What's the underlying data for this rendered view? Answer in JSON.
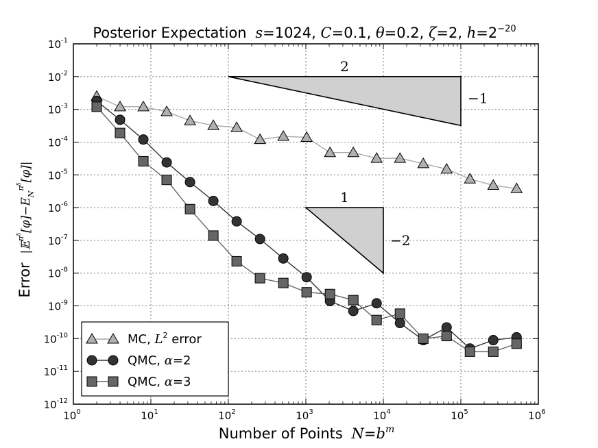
{
  "chart_data": {
    "type": "line",
    "title": "Posterior Expectation s=1024, C=0.1, θ=0.2, ζ=2, h=2^−20",
    "title_parts": {
      "prefix": "Posterior Expectation",
      "s_label": "s",
      "s_value": "1024",
      "C_label": "C",
      "C_value": "0.1",
      "theta_label": "θ",
      "theta_value": "0.2",
      "zeta_label": "ζ",
      "zeta_value": "2",
      "h_label": "h",
      "h_base": "2",
      "h_exp": "−20"
    },
    "xlabel": "Number of Points N=b^m",
    "xlabel_parts": {
      "text": "Number of Points",
      "N": "N",
      "b": "b",
      "m": "m"
    },
    "ylabel": "Error |E^{π^δ}[φ] − E_N^{π^δ}[φ]|",
    "ylabel_parts": {
      "text": "Error"
    },
    "x_scale": "log",
    "y_scale": "log",
    "xlim": [
      1,
      1000000
    ],
    "ylim": [
      1e-12,
      0.1
    ],
    "grid": true,
    "legend_position": "lower-left",
    "x_ticks": [
      {
        "base": "10",
        "exp": "0",
        "value": 1
      },
      {
        "base": "10",
        "exp": "1",
        "value": 10
      },
      {
        "base": "10",
        "exp": "2",
        "value": 100
      },
      {
        "base": "10",
        "exp": "3",
        "value": 1000
      },
      {
        "base": "10",
        "exp": "4",
        "value": 10000
      },
      {
        "base": "10",
        "exp": "5",
        "value": 100000
      },
      {
        "base": "10",
        "exp": "6",
        "value": 1000000
      }
    ],
    "y_ticks": [
      {
        "base": "10",
        "exp": "-12",
        "value": 1e-12
      },
      {
        "base": "10",
        "exp": "-11",
        "value": 1e-11
      },
      {
        "base": "10",
        "exp": "-10",
        "value": 1e-10
      },
      {
        "base": "10",
        "exp": "-9",
        "value": 1e-09
      },
      {
        "base": "10",
        "exp": "-8",
        "value": 1e-08
      },
      {
        "base": "10",
        "exp": "-7",
        "value": 1e-07
      },
      {
        "base": "10",
        "exp": "-6",
        "value": 1e-06
      },
      {
        "base": "10",
        "exp": "-5",
        "value": 1e-05
      },
      {
        "base": "10",
        "exp": "-4",
        "value": 0.0001
      },
      {
        "base": "10",
        "exp": "-3",
        "value": 0.001
      },
      {
        "base": "10",
        "exp": "-2",
        "value": 0.01
      },
      {
        "base": "10",
        "exp": "-1",
        "value": 0.1
      }
    ],
    "x": [
      2,
      4,
      8,
      16,
      32,
      64,
      128,
      256,
      512,
      1024,
      2048,
      4096,
      8192,
      16384,
      32768,
      65536,
      131072,
      262144,
      524288
    ],
    "series": [
      {
        "name": "MC, L² error",
        "legend_text": "MC,",
        "legend_math": "L",
        "legend_sup": "2",
        "legend_tail": "error",
        "marker": "triangle",
        "color": "#b0b0b0",
        "line_color": "#a8a8a8",
        "values": [
          0.0025,
          0.0012,
          0.0012,
          0.00085,
          0.00045,
          0.00032,
          0.00028,
          0.00012,
          0.00015,
          0.00014,
          4.8e-05,
          4.8e-05,
          3.2e-05,
          3.2e-05,
          2.2e-05,
          1.5e-05,
          7.5e-06,
          4.8e-06,
          3.8e-06
        ]
      },
      {
        "name": "QMC, α=2",
        "legend_text": "QMC,",
        "legend_math": "α",
        "legend_tail": "=2",
        "marker": "circle",
        "color": "#333333",
        "line_color": "#333333",
        "values": [
          0.0018,
          0.00048,
          0.00012,
          2.4e-05,
          6e-06,
          1.6e-06,
          3.8e-07,
          1.1e-07,
          2.8e-08,
          7.5e-09,
          1.4e-09,
          7e-10,
          1.2e-09,
          3e-10,
          9e-11,
          2.2e-10,
          5e-11,
          9e-11,
          1.1e-10
        ]
      },
      {
        "name": "QMC, α=3",
        "legend_text": "QMC,",
        "legend_math": "α",
        "legend_tail": "=3",
        "marker": "square",
        "color": "#666666",
        "line_color": "#666666",
        "values": [
          0.0012,
          0.00019,
          2.6e-05,
          7e-06,
          9e-07,
          1.4e-07,
          2.3e-08,
          7e-09,
          5e-09,
          2.6e-09,
          2.3e-09,
          1.5e-09,
          3.7e-10,
          5.8e-10,
          1e-10,
          1.2e-10,
          4e-11,
          4e-11,
          7e-11
        ]
      }
    ],
    "annotations": [
      {
        "name": "slope-triangle-mc",
        "points": [
          [
            100,
            0.01
          ],
          [
            100000,
            0.01
          ],
          [
            100000,
            0.00032
          ]
        ],
        "top_label": "2",
        "side_label": "−1"
      },
      {
        "name": "slope-triangle-qmc",
        "points": [
          [
            1000,
            1e-06
          ],
          [
            10000,
            1e-06
          ],
          [
            10000,
            1e-08
          ]
        ],
        "top_label": "1",
        "side_label": "−2"
      }
    ]
  }
}
